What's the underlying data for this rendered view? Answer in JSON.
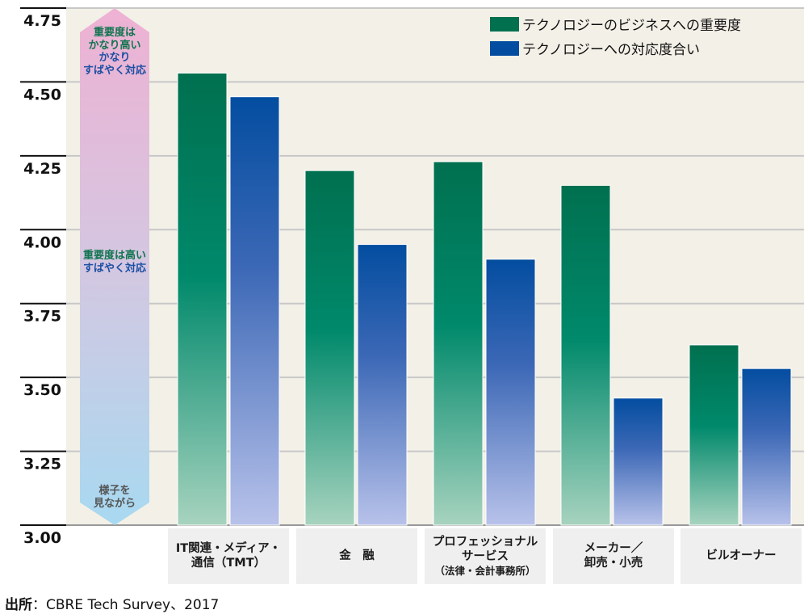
{
  "chart_data": {
    "type": "bar",
    "title": "",
    "xlabel": "",
    "ylabel": "",
    "ylim": [
      3.0,
      4.75
    ],
    "yticks": [
      3.0,
      3.25,
      3.5,
      3.75,
      4.0,
      4.25,
      4.5,
      4.75
    ],
    "ytick_labels": [
      "3.00",
      "3.25",
      "3.50",
      "3.75",
      "4.00",
      "4.25",
      "4.50",
      "4.75"
    ],
    "grid": true,
    "legend_position": "top-right",
    "categories": [
      {
        "lines": [
          "IT関連・メディア・",
          "通信（TMT）"
        ],
        "sub": ""
      },
      {
        "lines": [
          "金　融"
        ],
        "sub": ""
      },
      {
        "lines": [
          "プロフェッショナル",
          "サービス"
        ],
        "sub": "（法律・会計事務所）"
      },
      {
        "lines": [
          "メーカー／",
          "卸売・小売"
        ],
        "sub": ""
      },
      {
        "lines": [
          "ビルオーナー"
        ],
        "sub": ""
      }
    ],
    "series": [
      {
        "name": "テクノロジーのビジネスへの重要度",
        "color": "#00704f",
        "values": [
          4.53,
          4.2,
          4.23,
          4.15,
          3.61
        ]
      },
      {
        "name": "テクノロジーへの対応度合い",
        "color": "#034da0",
        "values": [
          4.45,
          3.95,
          3.9,
          3.43,
          3.53
        ]
      }
    ],
    "annotations": {
      "arrow_top": {
        "green": [
          "重要度は",
          "かなり高い"
        ],
        "blue": [
          "かなり",
          "すばやく対応"
        ]
      },
      "arrow_mid": {
        "green": [
          "重要度は高い"
        ],
        "blue": [
          "すばやく対応"
        ]
      },
      "arrow_bottom": [
        "様子を",
        "見ながら"
      ]
    }
  },
  "source": {
    "label": "出所",
    "text": "：CBRE Tech Survey、2017"
  },
  "colors": {
    "plot_bg": "#f3f0e7",
    "grid": "#c8c8c8",
    "arrow_top": "#eeb1d3",
    "arrow_bottom": "#a8d9f1"
  }
}
